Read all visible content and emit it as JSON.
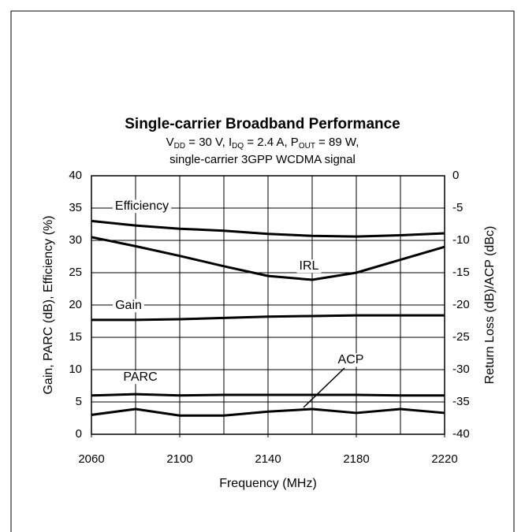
{
  "chart_data": {
    "type": "line",
    "title": "Single-carrier Broadband Performance",
    "subtitle_parts": [
      "V",
      "DD",
      " = 30 V, I",
      "DQ",
      " = 2.4 A, P",
      "OUT",
      " = 89 W,"
    ],
    "subtitle2": "single-carrier 3GPP WCDMA signal",
    "xlabel": "Frequency (MHz)",
    "ylabel": "Gain, PARC (dB), Efficiency (%)",
    "y2label": "Return Loss (dB)/ACP (dBc)",
    "x": [
      2060,
      2080,
      2100,
      2120,
      2140,
      2160,
      2180,
      2200,
      2220
    ],
    "xlim": [
      2060,
      2220
    ],
    "xticks": [
      2060,
      2100,
      2140,
      2180,
      2220
    ],
    "xgrid": [
      2080,
      2100,
      2120,
      2140,
      2160,
      2180,
      2200
    ],
    "ylim": [
      0,
      40
    ],
    "yticks": [
      0,
      5,
      10,
      15,
      20,
      25,
      30,
      35,
      40
    ],
    "y2lim": [
      -40,
      0
    ],
    "y2ticks": [
      -40,
      -35,
      -30,
      -25,
      -20,
      -15,
      -10,
      -5,
      0
    ],
    "grid": true,
    "series": [
      {
        "name": "Efficiency",
        "color": "#000000",
        "values": [
          33,
          32.3,
          31.8,
          31.5,
          31,
          30.7,
          30.6,
          30.8,
          31.1
        ]
      },
      {
        "name": "Gain",
        "color": "#000000",
        "values": [
          17.7,
          17.7,
          17.8,
          18.0,
          18.2,
          18.3,
          18.4,
          18.4,
          18.4
        ]
      },
      {
        "name": "PARC",
        "color": "#000000",
        "values": [
          6.0,
          6.2,
          6.0,
          6.1,
          6.1,
          6.1,
          6.1,
          6.0,
          6.0
        ]
      },
      {
        "name": "IRL",
        "color": "#000000",
        "axis": "y2",
        "values": [
          -9.5,
          -10.9,
          -12.4,
          -14.0,
          -15.5,
          -16.1,
          -15.0,
          -13.0,
          -11.0
        ]
      },
      {
        "name": "ACP",
        "color": "#000000",
        "axis": "y2",
        "values": [
          -37,
          -36.1,
          -37.1,
          -37.1,
          -36.5,
          -36.1,
          -36.7,
          -36.1,
          -36.7
        ]
      }
    ]
  }
}
